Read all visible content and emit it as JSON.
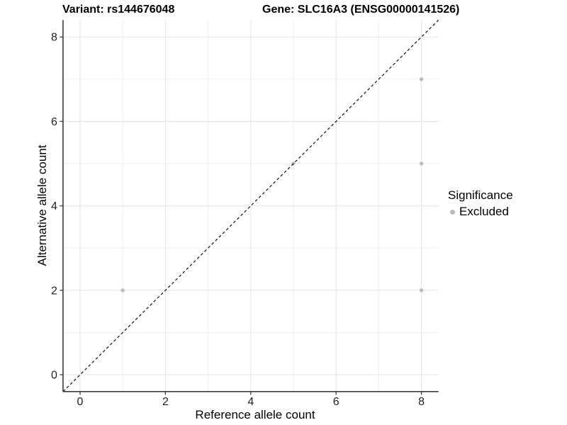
{
  "header": {
    "variant_title": "Variant: rs144676048",
    "gene_title": "Gene: SLC16A3 (ENSG00000141526)"
  },
  "chart_data": {
    "type": "scatter",
    "xlabel": "Reference allele count",
    "ylabel": "Alternative allele count",
    "xlim": [
      -0.4,
      8.4
    ],
    "ylim": [
      -0.4,
      8.4
    ],
    "x_major_ticks": [
      0,
      2,
      4,
      6,
      8
    ],
    "x_minor_gridlines": [
      1,
      3,
      5,
      7
    ],
    "y_major_ticks": [
      0,
      2,
      4,
      6,
      8
    ],
    "y_minor_gridlines": [
      1,
      3,
      5,
      7
    ],
    "grid": true,
    "series": [
      {
        "name": "Excluded",
        "color": "#bcbcbc",
        "points": [
          {
            "x": 1,
            "y": 2
          },
          {
            "x": 5,
            "y": 5
          },
          {
            "x": 8,
            "y": 2
          },
          {
            "x": 8,
            "y": 5
          },
          {
            "x": 8,
            "y": 7
          }
        ]
      }
    ],
    "reference_line": {
      "slope": 1,
      "intercept": 0,
      "style": "dashed",
      "color": "#111111"
    },
    "legend": {
      "title": "Significance",
      "position": "right",
      "items": [
        {
          "label": "Excluded",
          "color": "#bcbcbc",
          "marker": "circle"
        }
      ]
    },
    "colors": {
      "panel_background": "#ffffff",
      "grid_major": "#e3e3e3",
      "grid_minor": "#efefef",
      "axis_line": "#3c3c3c",
      "tick_label": "#1f1f1f",
      "point": "#bcbcbc"
    }
  }
}
